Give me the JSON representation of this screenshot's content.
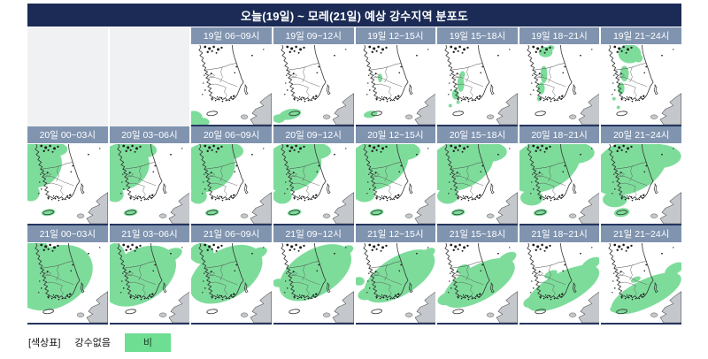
{
  "title": "오늘(19일) ~ 모레(21일) 예상 강수지역 분포도",
  "legend": {
    "prefix": "[색상표]",
    "no_precip": "강수없음",
    "rain": "비"
  },
  "colors": {
    "banner": "#1b2b55",
    "panel_header": "#8094b0",
    "rain_green": "#7edc9b",
    "legend_green": "#6ede92",
    "outside_gray": "#c4c8cd",
    "coast_line": "#2f2f2f"
  },
  "rows": [
    {
      "leading_empty": 2,
      "panels": [
        {
          "label": "19일 06~09시",
          "rain_blobs": [
            [
              3,
              84,
              10,
              8,
              0
            ],
            [
              13,
              89,
              8,
              5,
              0
            ]
          ]
        },
        {
          "label": "19일 09~12시",
          "rain_blobs": [
            [
              19,
              80,
              13,
              6,
              -12
            ],
            [
              6,
              85,
              7,
              5,
              0
            ]
          ]
        },
        {
          "label": "19일 12~15시",
          "rain_blobs": [
            [
              17,
              80,
              8,
              4,
              -10
            ],
            [
              28,
              38,
              2.5,
              5,
              0
            ]
          ]
        },
        {
          "label": "19일 15~18시",
          "rain_blobs": [
            [
              27,
              45,
              4,
              9,
              0
            ],
            [
              21,
              57,
              4,
              6,
              0
            ],
            [
              29,
              34,
              3,
              4,
              0
            ],
            [
              24,
              66,
              2,
              2,
              0
            ],
            [
              15,
              70,
              2,
              2,
              0
            ]
          ]
        },
        {
          "label": "19일 18~21시",
          "rain_blobs": [
            [
              30,
              8,
              8,
              6,
              0
            ],
            [
              28,
              34,
              4,
              10,
              0
            ],
            [
              25,
              50,
              4,
              7,
              0
            ],
            [
              22,
              62,
              2,
              3,
              0
            ],
            [
              36,
              3,
              4,
              3,
              0
            ]
          ]
        },
        {
          "label": "19일 21~24시",
          "rain_blobs": [
            [
              33,
              10,
              13,
              11,
              0
            ],
            [
              27,
              33,
              5,
              9,
              0
            ],
            [
              23,
              50,
              4,
              7,
              0
            ],
            [
              43,
              15,
              5,
              5,
              0
            ],
            [
              15,
              62,
              2,
              2,
              0
            ],
            [
              20,
              72,
              2,
              2,
              0
            ]
          ]
        }
      ]
    },
    {
      "leading_empty": 0,
      "panels": [
        {
          "label": "20일 00~03시",
          "rain_blobs": [
            [
              10,
              24,
              30,
              26,
              -20
            ],
            [
              32,
              6,
              14,
              8,
              0
            ],
            [
              4,
              56,
              10,
              10,
              0
            ],
            [
              24,
              79,
              8,
              4,
              -8
            ]
          ]
        },
        {
          "label": "20일 03~06시",
          "rain_blobs": [
            [
              14,
              26,
              32,
              27,
              -20
            ],
            [
              38,
              7,
              16,
              9,
              0
            ],
            [
              6,
              58,
              10,
              9,
              0
            ],
            [
              24,
              79,
              8,
              4,
              -8
            ]
          ]
        },
        {
          "label": "20일 06~09시",
          "rain_blobs": [
            [
              17,
              27,
              34,
              28,
              -20
            ],
            [
              42,
              8,
              18,
              10,
              0
            ],
            [
              8,
              60,
              10,
              9,
              0
            ],
            [
              24,
              79,
              8,
              4,
              -8
            ]
          ]
        },
        {
          "label": "20일 09~12시",
          "rain_blobs": [
            [
              20,
              26,
              36,
              28,
              -22
            ],
            [
              46,
              8,
              20,
              10,
              0
            ],
            [
              10,
              60,
              11,
              9,
              0
            ],
            [
              24,
              79,
              8,
              4,
              -8
            ]
          ]
        },
        {
          "label": "20일 12~15시",
          "rain_blobs": [
            [
              22,
              24,
              40,
              28,
              -25
            ],
            [
              52,
              8,
              22,
              11,
              0
            ],
            [
              10,
              58,
              12,
              9,
              0
            ],
            [
              24,
              79,
              8,
              4,
              -8
            ]
          ]
        },
        {
          "label": "20일 15~18시",
          "rain_blobs": [
            [
              25,
              24,
              42,
              28,
              -25
            ],
            [
              56,
              9,
              24,
              12,
              0
            ],
            [
              12,
              60,
              12,
              9,
              0
            ],
            [
              24,
              79,
              8,
              4,
              -8
            ]
          ]
        },
        {
          "label": "20일 18~21시",
          "rain_blobs": [
            [
              28,
              24,
              44,
              29,
              -25
            ],
            [
              60,
              10,
              26,
              13,
              0
            ],
            [
              14,
              62,
              13,
              9,
              0
            ],
            [
              24,
              79,
              8,
              4,
              -8
            ]
          ]
        },
        {
          "label": "20일 21~24시",
          "rain_blobs": [
            [
              32,
              26,
              46,
              30,
              -25
            ],
            [
              64,
              14,
              28,
              14,
              0
            ],
            [
              16,
              64,
              14,
              9,
              0
            ],
            [
              24,
              79,
              9,
              5,
              -8
            ]
          ]
        }
      ]
    },
    {
      "leading_empty": 0,
      "panels": [
        {
          "label": "21일 00~03시",
          "rain_blobs": [
            [
              30,
              40,
              48,
              34,
              -30
            ],
            [
              10,
              10,
              16,
              14,
              0
            ],
            [
              2,
              62,
              6,
              8,
              0
            ]
          ]
        },
        {
          "label": "21일 03~06시",
          "rain_blobs": [
            [
              34,
              38,
              46,
              30,
              -32
            ],
            [
              6,
              16,
              12,
              16,
              0
            ],
            [
              70,
              14,
              14,
              7,
              -25
            ]
          ]
        },
        {
          "label": "21일 06~09시",
          "rain_blobs": [
            [
              40,
              36,
              46,
              28,
              -32
            ],
            [
              12,
              12,
              14,
              12,
              0
            ],
            [
              76,
              12,
              12,
              6,
              -25
            ]
          ]
        },
        {
          "label": "21일 09~12시",
          "rain_blobs": [
            [
              48,
              34,
              46,
              26,
              -32
            ],
            [
              18,
              52,
              10,
              7,
              -20
            ],
            [
              6,
              46,
              7,
              5,
              0
            ],
            [
              84,
              8,
              8,
              5,
              -25
            ]
          ]
        },
        {
          "label": "21일 12~15시",
          "rain_blobs": [
            [
              50,
              38,
              46,
              22,
              -32
            ],
            [
              14,
              58,
              12,
              7,
              -20
            ],
            [
              82,
              12,
              10,
              5,
              -30
            ],
            [
              4,
              44,
              6,
              5,
              0
            ]
          ]
        },
        {
          "label": "21일 15~18시",
          "rain_blobs": [
            [
              48,
              46,
              46,
              20,
              -30
            ],
            [
              12,
              64,
              12,
              7,
              -20
            ],
            [
              80,
              18,
              12,
              6,
              -30
            ],
            [
              30,
              30,
              8,
              5,
              -20
            ]
          ]
        },
        {
          "label": "21일 18~21시",
          "rain_blobs": [
            [
              50,
              52,
              46,
              18,
              -28
            ],
            [
              14,
              68,
              10,
              6,
              -20
            ],
            [
              82,
              24,
              12,
              6,
              -30
            ],
            [
              36,
              36,
              8,
              4,
              -25
            ]
          ]
        },
        {
          "label": "21일 21~24시",
          "rain_blobs": [
            [
              52,
              58,
              44,
              16,
              -26
            ],
            [
              84,
              30,
              12,
              6,
              -30
            ],
            [
              20,
              74,
              10,
              5,
              -20
            ],
            [
              40,
              42,
              6,
              3,
              -25
            ]
          ]
        }
      ]
    }
  ]
}
